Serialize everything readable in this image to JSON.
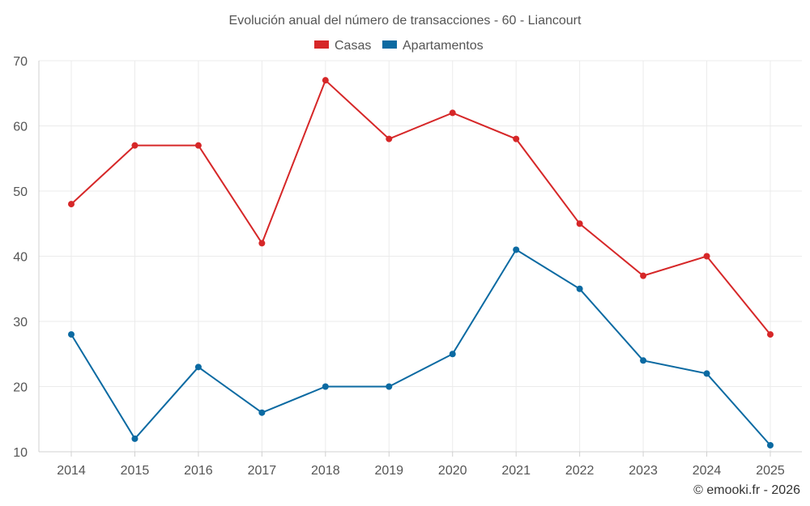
{
  "chart_data": {
    "type": "line",
    "title": "Evolución anual del número de transacciones - 60 - Liancourt",
    "xlabel": "",
    "ylabel": "",
    "categories": [
      "2014",
      "2015",
      "2016",
      "2017",
      "2018",
      "2019",
      "2020",
      "2021",
      "2022",
      "2023",
      "2024",
      "2025"
    ],
    "ylim": [
      10,
      70
    ],
    "yticks": [
      10,
      20,
      30,
      40,
      50,
      60,
      70
    ],
    "grid": true,
    "legend_position": "top-center",
    "series": [
      {
        "name": "Casas",
        "color": "#d62728",
        "values": [
          48,
          57,
          57,
          42,
          67,
          58,
          62,
          58,
          45,
          37,
          40,
          28
        ]
      },
      {
        "name": "Apartamentos",
        "color": "#0b6aa2",
        "values": [
          28,
          12,
          23,
          16,
          20,
          20,
          25,
          41,
          35,
          24,
          22,
          11
        ]
      }
    ]
  },
  "credit": "© emooki.fr - 2026"
}
